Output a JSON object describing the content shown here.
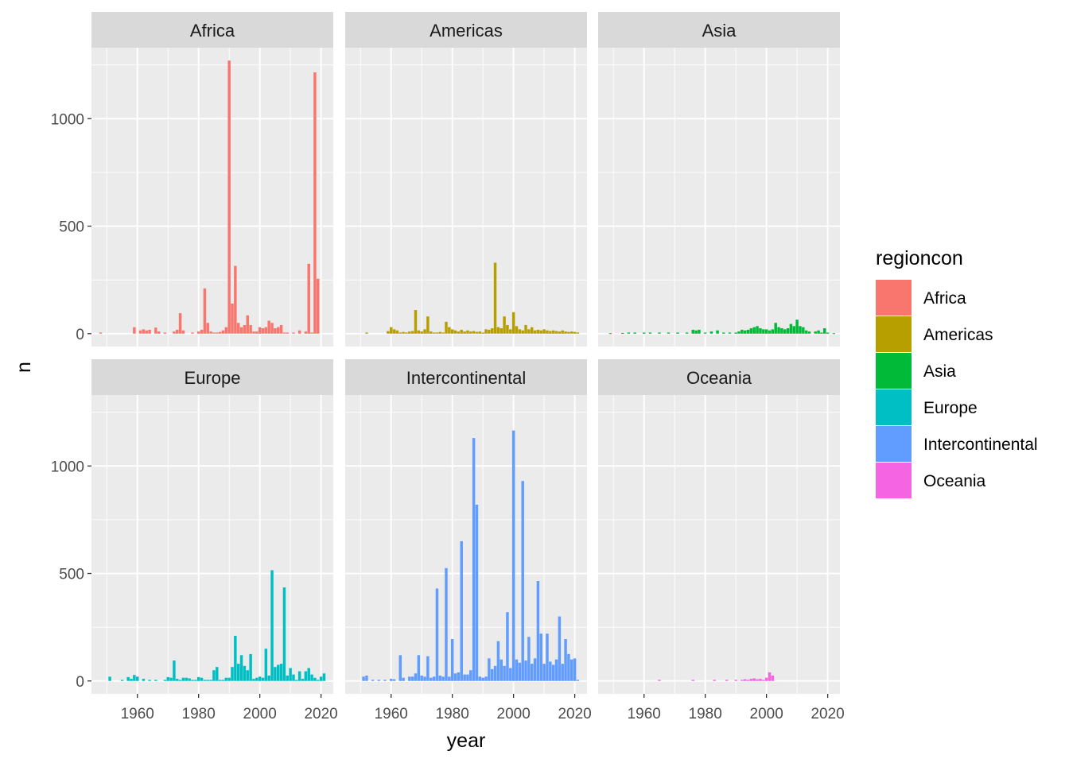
{
  "chart_data": {
    "type": "bar",
    "facet_by": "regioncon",
    "facet_layout": "2 rows x 3 columns",
    "facets": [
      "Africa",
      "Americas",
      "Asia",
      "Europe",
      "Intercontinental",
      "Oceania"
    ],
    "xlabel": "year",
    "ylabel": "n",
    "xlim": [
      1945,
      2024
    ],
    "ylim": [
      -60,
      1330
    ],
    "x_ticks": [
      1960,
      1980,
      2000,
      2020
    ],
    "y_ticks": [
      0,
      500,
      1000
    ],
    "grid": true,
    "background": "#EBEBEB",
    "strip_background": "#D9D9D9",
    "legend": {
      "title": "regioncon",
      "placement": "right",
      "entries": [
        "Africa",
        "Americas",
        "Asia",
        "Europe",
        "Intercontinental",
        "Oceania"
      ]
    },
    "colors": {
      "Africa": "#F8766D",
      "Americas": "#B79F00",
      "Asia": "#00BA38",
      "Europe": "#00BFC4",
      "Intercontinental": "#619CFF",
      "Oceania": "#F564E3"
    },
    "series": [
      {
        "name": "Africa",
        "x": [
          1948,
          1959,
          1961,
          1962,
          1963,
          1964,
          1966,
          1967,
          1969,
          1972,
          1973,
          1974,
          1975,
          1978,
          1980,
          1981,
          1982,
          1983,
          1984,
          1985,
          1986,
          1987,
          1988,
          1989,
          1990,
          1991,
          1992,
          1993,
          1994,
          1995,
          1996,
          1997,
          1998,
          1999,
          2000,
          2001,
          2002,
          2003,
          2004,
          2005,
          2006,
          2007,
          2008,
          2009,
          2011,
          2013,
          2015,
          2016,
          2017,
          2018,
          2019
        ],
        "values": [
          5,
          30,
          15,
          20,
          15,
          18,
          28,
          10,
          5,
          10,
          18,
          95,
          15,
          5,
          10,
          18,
          210,
          50,
          10,
          5,
          5,
          8,
          15,
          30,
          1270,
          140,
          315,
          50,
          30,
          40,
          85,
          40,
          10,
          10,
          30,
          25,
          30,
          60,
          50,
          25,
          30,
          40,
          5,
          5,
          5,
          15,
          10,
          325,
          5,
          1215,
          255
        ]
      },
      {
        "name": "Americas",
        "x": [
          1952,
          1959,
          1960,
          1961,
          1962,
          1963,
          1964,
          1965,
          1966,
          1967,
          1968,
          1969,
          1970,
          1971,
          1972,
          1973,
          1974,
          1975,
          1976,
          1977,
          1978,
          1979,
          1980,
          1981,
          1982,
          1983,
          1984,
          1985,
          1986,
          1987,
          1988,
          1989,
          1990,
          1991,
          1992,
          1993,
          1994,
          1995,
          1996,
          1997,
          1998,
          1999,
          2000,
          2001,
          2002,
          2003,
          2004,
          2005,
          2006,
          2007,
          2008,
          2009,
          2010,
          2011,
          2012,
          2013,
          2014,
          2015,
          2016,
          2017,
          2018,
          2019,
          2020,
          2021
        ],
        "values": [
          5,
          12,
          30,
          20,
          15,
          5,
          8,
          5,
          10,
          12,
          110,
          15,
          10,
          20,
          80,
          10,
          5,
          5,
          8,
          5,
          55,
          30,
          20,
          15,
          10,
          18,
          10,
          15,
          10,
          12,
          8,
          10,
          5,
          20,
          18,
          25,
          330,
          30,
          25,
          80,
          40,
          20,
          100,
          35,
          20,
          15,
          40,
          20,
          30,
          15,
          18,
          15,
          20,
          15,
          12,
          15,
          12,
          10,
          15,
          10,
          8,
          10,
          8,
          5
        ]
      },
      {
        "name": "Asia",
        "x": [
          1949,
          1953,
          1955,
          1957,
          1960,
          1962,
          1965,
          1968,
          1971,
          1974,
          1976,
          1977,
          1978,
          1980,
          1982,
          1984,
          1986,
          1988,
          1990,
          1991,
          1992,
          1993,
          1994,
          1995,
          1996,
          1997,
          1998,
          1999,
          2000,
          2001,
          2002,
          2003,
          2004,
          2005,
          2006,
          2007,
          2008,
          2009,
          2010,
          2011,
          2012,
          2013,
          2014,
          2016,
          2017,
          2018,
          2019,
          2020,
          2022
        ],
        "values": [
          2,
          3,
          5,
          5,
          5,
          5,
          5,
          5,
          5,
          5,
          18,
          15,
          18,
          5,
          10,
          15,
          5,
          5,
          5,
          10,
          18,
          15,
          18,
          25,
          30,
          35,
          25,
          20,
          20,
          15,
          20,
          50,
          30,
          25,
          20,
          25,
          45,
          35,
          65,
          35,
          30,
          15,
          10,
          10,
          15,
          5,
          25,
          5,
          2
        ]
      },
      {
        "name": "Europe",
        "x": [
          1951,
          1955,
          1957,
          1958,
          1959,
          1960,
          1962,
          1964,
          1966,
          1969,
          1970,
          1971,
          1972,
          1973,
          1974,
          1975,
          1976,
          1977,
          1978,
          1979,
          1980,
          1981,
          1982,
          1983,
          1984,
          1985,
          1986,
          1987,
          1988,
          1989,
          1990,
          1991,
          1992,
          1993,
          1994,
          1995,
          1996,
          1997,
          1998,
          1999,
          2000,
          2001,
          2002,
          2003,
          2004,
          2005,
          2006,
          2007,
          2008,
          2009,
          2010,
          2011,
          2012,
          2013,
          2014,
          2015,
          2016,
          2017,
          2018,
          2019,
          2020,
          2021
        ],
        "values": [
          20,
          5,
          18,
          10,
          28,
          20,
          10,
          5,
          5,
          5,
          18,
          15,
          95,
          10,
          5,
          15,
          15,
          12,
          5,
          5,
          18,
          15,
          5,
          5,
          5,
          50,
          65,
          5,
          5,
          15,
          15,
          65,
          210,
          80,
          120,
          70,
          50,
          125,
          10,
          15,
          20,
          15,
          150,
          25,
          515,
          65,
          75,
          80,
          435,
          25,
          60,
          30,
          5,
          45,
          10,
          45,
          60,
          30,
          15,
          5,
          20,
          35
        ]
      },
      {
        "name": "Intercontinental",
        "x": [
          1951,
          1952,
          1954,
          1956,
          1958,
          1960,
          1961,
          1963,
          1964,
          1966,
          1967,
          1968,
          1969,
          1970,
          1971,
          1972,
          1973,
          1974,
          1975,
          1976,
          1977,
          1978,
          1979,
          1980,
          1981,
          1982,
          1983,
          1984,
          1985,
          1986,
          1987,
          1988,
          1989,
          1990,
          1991,
          1992,
          1993,
          1994,
          1995,
          1996,
          1997,
          1998,
          1999,
          2000,
          2001,
          2002,
          2003,
          2004,
          2005,
          2006,
          2007,
          2008,
          2009,
          2010,
          2011,
          2012,
          2013,
          2014,
          2015,
          2016,
          2017,
          2018,
          2019,
          2020,
          2021
        ],
        "values": [
          20,
          25,
          5,
          5,
          5,
          10,
          8,
          120,
          15,
          20,
          20,
          35,
          120,
          25,
          20,
          115,
          15,
          20,
          430,
          25,
          20,
          525,
          20,
          195,
          35,
          40,
          650,
          30,
          30,
          50,
          1130,
          820,
          20,
          15,
          20,
          105,
          55,
          70,
          185,
          100,
          70,
          320,
          60,
          1165,
          100,
          85,
          930,
          95,
          205,
          80,
          105,
          465,
          220,
          80,
          220,
          90,
          75,
          100,
          300,
          80,
          195,
          125,
          100,
          105,
          5
        ]
      },
      {
        "name": "Oceania",
        "x": [
          1965,
          1976,
          1983,
          1987,
          1990,
          1992,
          1993,
          1994,
          1995,
          1996,
          1997,
          1998,
          1999,
          2000,
          2001,
          2002
        ],
        "values": [
          5,
          5,
          5,
          5,
          5,
          5,
          8,
          5,
          10,
          12,
          8,
          10,
          5,
          15,
          40,
          25
        ]
      }
    ]
  }
}
